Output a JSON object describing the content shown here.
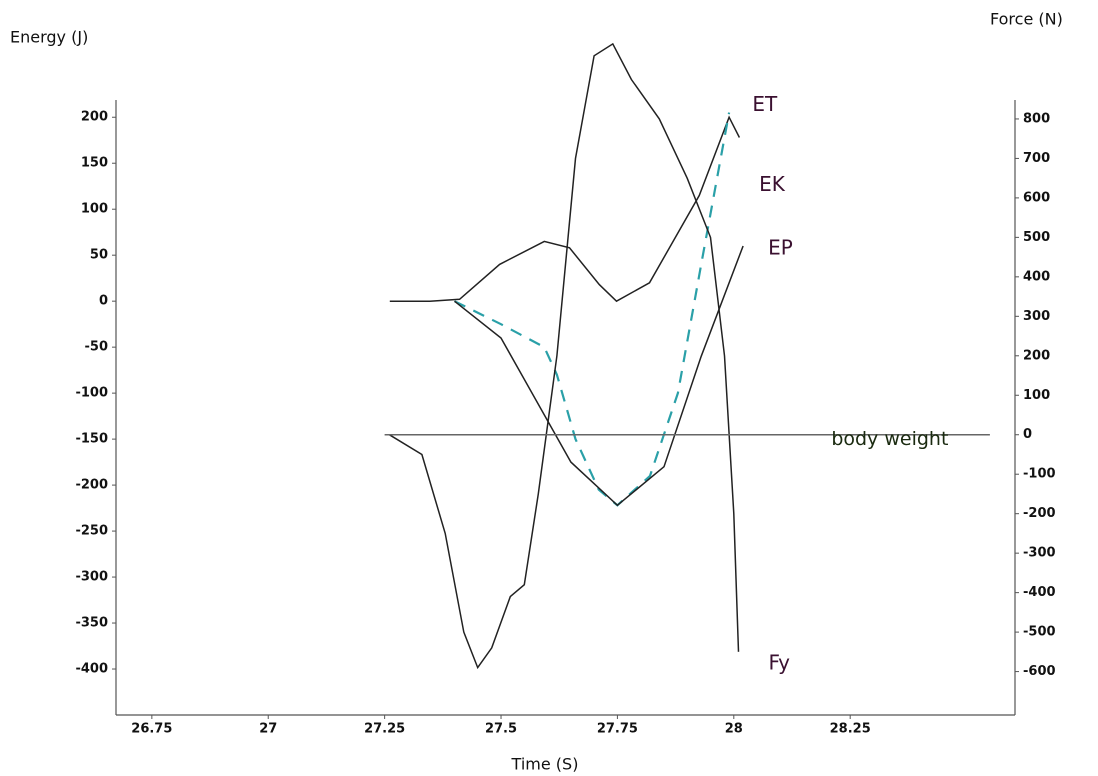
{
  "chart_data": {
    "type": "line",
    "xlabel": "Time (S)",
    "ylabel": "Energy (J)",
    "y2label": "Force (N)",
    "xlim": [
      26.673,
      28.604
    ],
    "xticks": [
      26.75,
      27,
      27.25,
      27.5,
      27.75,
      28,
      28.25
    ],
    "ylim": [
      -450,
      284
    ],
    "yticks": [
      -400,
      -350,
      -300,
      -250,
      -200,
      -150,
      -100,
      -50,
      0,
      50,
      100,
      150,
      200
    ],
    "y2lim": [
      -710,
      1000
    ],
    "y2ticks": [
      -600,
      -500,
      -400,
      -300,
      -200,
      -100,
      0,
      100,
      200,
      300,
      400,
      500,
      600,
      700,
      800
    ],
    "grid": false,
    "series": [
      {
        "name": "ET",
        "color": "#222222",
        "dashed": false,
        "axis": "y",
        "x": [
          27.261,
          27.347,
          27.411,
          27.497,
          27.593,
          27.647,
          27.711,
          27.748,
          27.819,
          27.926,
          27.99,
          28.012
        ],
        "values": [
          0,
          0,
          2,
          40,
          65,
          58,
          18,
          0,
          20,
          115,
          200,
          178
        ]
      },
      {
        "name": "EK",
        "color": "#2aa0a8",
        "dashed": true,
        "axis": "y",
        "x": [
          27.4,
          27.5,
          27.593,
          27.62,
          27.66,
          27.71,
          27.75,
          27.82,
          27.88,
          27.93,
          27.97,
          27.99
        ],
        "values": [
          0,
          -25,
          -50,
          -80,
          -150,
          -205,
          -222,
          -190,
          -100,
          40,
          150,
          205
        ]
      },
      {
        "name": "EP",
        "color": "#222222",
        "dashed": false,
        "axis": "y",
        "x": [
          27.4,
          27.5,
          27.6,
          27.65,
          27.75,
          27.85,
          27.93,
          28.02
        ],
        "values": [
          0,
          -40,
          -130,
          -175,
          -222,
          -180,
          -60,
          60
        ]
      },
      {
        "name": "Fy",
        "color": "#222222",
        "dashed": false,
        "axis": "y2",
        "x": [
          27.26,
          27.33,
          27.38,
          27.42,
          27.45,
          27.48,
          27.52,
          27.55,
          27.58,
          27.62,
          27.66,
          27.7,
          27.74,
          27.78,
          27.84,
          27.9,
          27.95,
          27.98,
          28.0,
          28.01
        ],
        "values": [
          0,
          -50,
          -250,
          -500,
          -590,
          -540,
          -410,
          -380,
          -150,
          200,
          700,
          960,
          990,
          900,
          800,
          650,
          500,
          200,
          -200,
          -550
        ]
      },
      {
        "name": "body weight",
        "color": "#666666",
        "dashed": false,
        "axis": "y2",
        "x": [
          27.25,
          28.55
        ],
        "values": [
          0,
          0
        ]
      }
    ]
  }
}
